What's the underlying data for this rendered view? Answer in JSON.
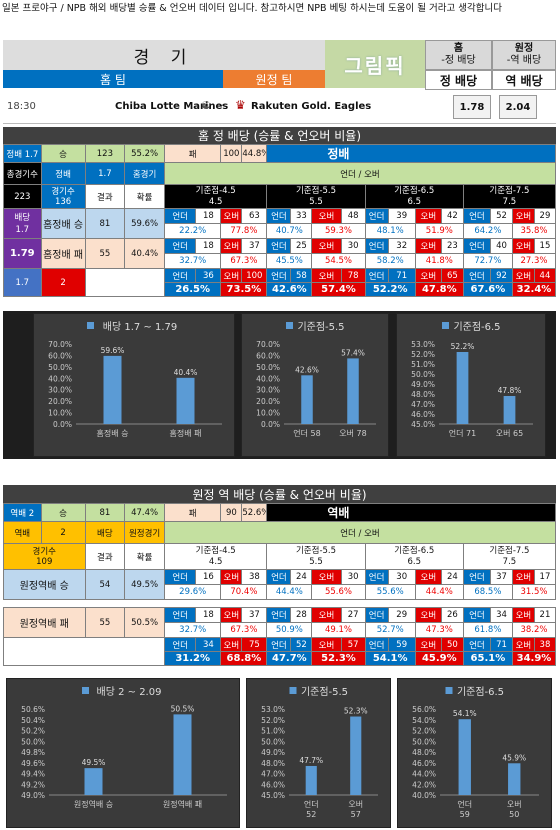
{
  "intro": "일본 프로야구 / NPB 해외 배당별 승률 & 언오버 데이터 입니다. 참고하시면 NPB 베팅 하시는데 도움이 될 거라고 생각합니다",
  "header": {
    "game": "경 기",
    "logo": "그림픽",
    "home_team": "홈 팀",
    "away_team": "원정 팀",
    "home": "홈",
    "away": "원정",
    "home_sub": "-정 배당",
    "away_sub": "-역 배당",
    "fav_odds": "정 배당",
    "dog_odds": "역 배당"
  },
  "match": {
    "time": "18:30",
    "home": "Chiba Lotte Marines",
    "away": "Rakuten Gold. Eagles",
    "sep": "-",
    "odds1": "1.78",
    "odds2": "2.04"
  },
  "s1": {
    "title": "홈 정 배당 (승률 & 언오버 비율)",
    "top": [
      "정배 1.7",
      "승",
      "123",
      "55.2%",
      "패",
      "100",
      "44.8%"
    ],
    "label": "정배",
    "h1": [
      "총경기수",
      "정배",
      "1.7",
      "홈경기"
    ],
    "total": "223",
    "gcount": "경기수\n136",
    "result": "결과",
    "prob": "확률",
    "ou": "언더 / 오버",
    "lines": [
      [
        "기준점-4.5",
        "4.5"
      ],
      [
        "기준점-5.5",
        "5.5"
      ],
      [
        "기준점-6.5",
        "6.5"
      ],
      [
        "기준점-7.5",
        "7.5"
      ]
    ],
    "side_odds1": "배당",
    "side_odds2": "1.7",
    "side_odds3": "1.79",
    "win": {
      "label": "홈정배 승",
      "n": "81",
      "pct": "59.6%"
    },
    "lose": {
      "label": "홈정배 패",
      "n": "55",
      "pct": "40.4%"
    },
    "row1": [
      [
        "언더",
        "18",
        "오버",
        "63",
        "22.2%",
        "77.8%"
      ],
      [
        "언더",
        "33",
        "오버",
        "48",
        "40.7%",
        "59.3%"
      ],
      [
        "언더",
        "39",
        "오버",
        "42",
        "48.1%",
        "51.9%"
      ],
      [
        "언더",
        "52",
        "오버",
        "29",
        "64.2%",
        "35.8%"
      ]
    ],
    "row2": [
      [
        "언더",
        "18",
        "오버",
        "37",
        "32.7%",
        "67.3%"
      ],
      [
        "언더",
        "25",
        "오버",
        "30",
        "45.5%",
        "54.5%"
      ],
      [
        "언더",
        "32",
        "오버",
        "23",
        "58.2%",
        "41.8%"
      ],
      [
        "언더",
        "40",
        "오버",
        "15",
        "72.7%",
        "27.3%"
      ]
    ],
    "row3": [
      [
        "언더",
        "36",
        "오버",
        "100",
        "26.5%",
        "73.5%"
      ],
      [
        "언더",
        "58",
        "오버",
        "78",
        "42.6%",
        "57.4%"
      ],
      [
        "언더",
        "71",
        "오버",
        "65",
        "52.2%",
        "47.8%"
      ],
      [
        "언더",
        "92",
        "오버",
        "44",
        "67.6%",
        "32.4%"
      ]
    ],
    "foot": [
      "1.7",
      "2"
    ]
  },
  "s2": {
    "title": "원정 역 배당 (승률 & 언오버 비율)",
    "top": [
      "역배 2",
      "승",
      "81",
      "47.4%",
      "패",
      "90",
      "52.6%"
    ],
    "label": "역배",
    "h1": [
      "역배",
      "2",
      "배당",
      "원정경기"
    ],
    "gcount": "경기수\n109",
    "result": "결과",
    "prob": "확률",
    "ou": "언더 / 오버",
    "lines": [
      [
        "기준점-4.5",
        "4.5"
      ],
      [
        "기준점-5.5",
        "5.5"
      ],
      [
        "기준점-6.5",
        "6.5"
      ],
      [
        "기준점-7.5",
        "7.5"
      ]
    ],
    "win": {
      "label": "원정역배 승",
      "n": "54",
      "pct": "49.5%"
    },
    "lose": {
      "label": "원정역배 패",
      "n": "55",
      "pct": "50.5%"
    },
    "row1": [
      [
        "언더",
        "16",
        "오버",
        "38",
        "29.6%",
        "70.4%"
      ],
      [
        "언더",
        "24",
        "오버",
        "30",
        "44.4%",
        "55.6%"
      ],
      [
        "언더",
        "30",
        "오버",
        "24",
        "55.6%",
        "44.4%"
      ],
      [
        "언더",
        "37",
        "오버",
        "17",
        "68.5%",
        "31.5%"
      ]
    ],
    "row2": [
      [
        "언더",
        "18",
        "오버",
        "37",
        "32.7%",
        "67.3%"
      ],
      [
        "언더",
        "28",
        "오버",
        "27",
        "50.9%",
        "49.1%"
      ],
      [
        "언더",
        "29",
        "오버",
        "26",
        "52.7%",
        "47.3%"
      ],
      [
        "언더",
        "34",
        "오버",
        "21",
        "61.8%",
        "38.2%"
      ]
    ],
    "row3": [
      [
        "언더",
        "34",
        "오버",
        "75",
        "31.2%",
        "68.8%"
      ],
      [
        "언더",
        "52",
        "오버",
        "57",
        "47.7%",
        "52.3%"
      ],
      [
        "언더",
        "59",
        "오버",
        "50",
        "54.1%",
        "45.9%"
      ],
      [
        "언더",
        "71",
        "오버",
        "38",
        "65.1%",
        "34.9%"
      ]
    ]
  },
  "chart_data": [
    {
      "type": "bar",
      "title": "배당 1.7 ~ 1.79",
      "categories": [
        "홈정배 승",
        "홈정배 패"
      ],
      "values": [
        59.6,
        40.4
      ],
      "ylim": [
        0,
        70
      ],
      "ticks": [
        "0.0%",
        "10.0%",
        "20.0%",
        "30.0%",
        "40.0%",
        "50.0%",
        "60.0%",
        "70.0%"
      ],
      "labels": [
        "59.6%",
        "40.4%"
      ],
      "color": "#5b9bd5"
    },
    {
      "type": "bar",
      "title": "기준점-5.5",
      "categories": [
        "언더  58",
        "오버  78"
      ],
      "values": [
        42.6,
        57.4
      ],
      "ylim": [
        0,
        70
      ],
      "ticks": [
        "0.0%",
        "10.0%",
        "20.0%",
        "30.0%",
        "40.0%",
        "50.0%",
        "60.0%",
        "70.0%"
      ],
      "labels": [
        "42.6%",
        "57.4%"
      ],
      "color": "#5b9bd5"
    },
    {
      "type": "bar",
      "title": "기준점-6.5",
      "categories": [
        "언더  71",
        "오버  65"
      ],
      "values": [
        52.2,
        47.8
      ],
      "ylim": [
        45,
        53
      ],
      "ticks": [
        "45.0%",
        "46.0%",
        "47.0%",
        "48.0%",
        "49.0%",
        "50.0%",
        "51.0%",
        "52.0%",
        "53.0%"
      ],
      "labels": [
        "52.2%",
        "47.8%"
      ],
      "color": "#5b9bd5"
    },
    {
      "type": "bar",
      "title": "배당 2 ~ 2.09",
      "categories": [
        "원정역배 승",
        "원정역배 패"
      ],
      "values": [
        49.5,
        50.5
      ],
      "ylim": [
        49,
        50.6
      ],
      "ticks": [
        "49.0%",
        "49.2%",
        "49.4%",
        "49.6%",
        "49.8%",
        "50.0%",
        "50.2%",
        "50.4%",
        "50.6%"
      ],
      "labels": [
        "49.5%",
        "50.5%"
      ],
      "color": "#5b9bd5"
    },
    {
      "type": "bar",
      "title": "기준점-5.5",
      "categories": [
        "언더\n52",
        "오버\n57"
      ],
      "values": [
        47.7,
        52.3
      ],
      "ylim": [
        45,
        53
      ],
      "ticks": [
        "45.0%",
        "46.0%",
        "47.0%",
        "48.0%",
        "49.0%",
        "50.0%",
        "51.0%",
        "52.0%",
        "53.0%"
      ],
      "labels": [
        "47.7%",
        "52.3%"
      ],
      "color": "#5b9bd5"
    },
    {
      "type": "bar",
      "title": "기준점-6.5",
      "categories": [
        "언더\n59",
        "오버\n50"
      ],
      "values": [
        54.1,
        45.9
      ],
      "ylim": [
        40,
        56
      ],
      "ticks": [
        "40.0%",
        "42.0%",
        "44.0%",
        "46.0%",
        "48.0%",
        "50.0%",
        "52.0%",
        "54.0%",
        "56.0%"
      ],
      "labels": [
        "54.1%",
        "45.9%"
      ],
      "color": "#5b9bd5"
    }
  ]
}
